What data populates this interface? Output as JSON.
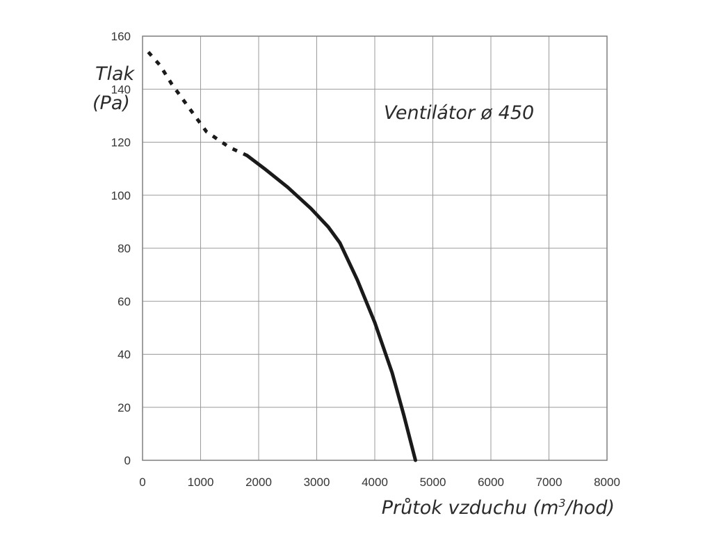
{
  "chart_data": {
    "type": "line",
    "title": "Ventilátor ø 450",
    "ylabel_line1": "Tlak",
    "ylabel_line2": "(Pa)",
    "xlabel_prefix": "Průtok vzduchu (m",
    "xlabel_sup": "3",
    "xlabel_suffix": "/hod)",
    "xlim": [
      0,
      8000
    ],
    "ylim": [
      0,
      160
    ],
    "x_ticks": [
      0,
      1000,
      2000,
      3000,
      4000,
      5000,
      6000,
      7000,
      8000
    ],
    "y_ticks": [
      0,
      20,
      40,
      60,
      80,
      100,
      120,
      140,
      160
    ],
    "grid": true,
    "series": [
      {
        "style": "dotted",
        "color": "#1a1a1a",
        "x": [
          100,
          300,
          500,
          700,
          900,
          1100,
          1300,
          1500,
          1800
        ],
        "y": [
          154,
          149,
          142,
          136,
          130,
          124,
          121,
          118,
          115
        ]
      },
      {
        "style": "solid",
        "color": "#1a1a1a",
        "x": [
          1800,
          2100,
          2500,
          2900,
          3200,
          3400,
          3700,
          4000,
          4300,
          4500,
          4700
        ],
        "y": [
          115,
          110,
          103,
          95,
          88,
          82,
          68,
          52,
          33,
          17,
          0
        ]
      }
    ]
  }
}
